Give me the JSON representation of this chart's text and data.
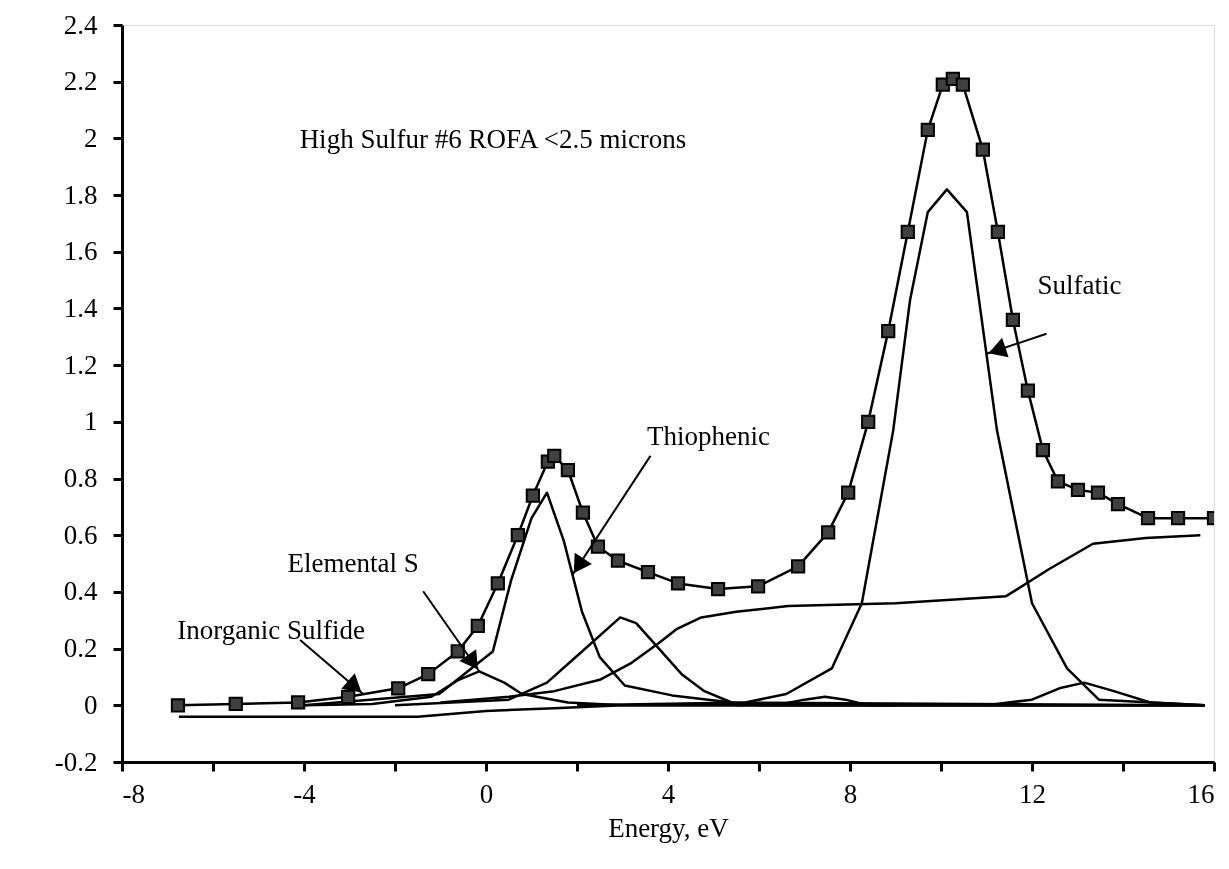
{
  "chart_data": {
    "type": "line",
    "xlabel": "Energy, eV",
    "xlim": [
      -8,
      16
    ],
    "ylim": [
      -0.2,
      2.4
    ],
    "xticks": [
      -8,
      {
        "value": -6,
        "label": null
      },
      -4,
      {
        "value": -2,
        "label": null
      },
      0,
      {
        "value": 2,
        "label": null
      },
      4,
      {
        "value": 6,
        "label": null
      },
      8,
      {
        "value": 10,
        "label": null
      },
      12,
      {
        "value": 14,
        "label": null
      },
      16
    ],
    "yticks": [
      -0.2,
      0,
      0.2,
      0.4,
      0.6,
      0.8,
      1,
      1.2,
      1.4,
      1.6,
      1.8,
      2,
      2.2,
      2.4
    ],
    "grid": false,
    "annotations": [
      "High Sulfur #6 ROFA <2.5 microns",
      {
        "text": "Inorganic Sulfide",
        "x": -2.7,
        "y": 0.04
      },
      {
        "text": "Elemental S",
        "x": -0.15,
        "y": 0.12
      },
      {
        "text": "Thiophenic",
        "x": 1.9,
        "y": 0.46
      },
      {
        "text": "Sulfatic",
        "x": 11.0,
        "y": 1.24
      }
    ],
    "series": [
      {
        "type": "scatter",
        "marker": "square",
        "color": "#404040",
        "x": [
          -6.77,
          -5.5,
          -4.13,
          -3.03,
          -1.93,
          -1.27,
          -0.62,
          -0.18,
          0.26,
          0.7,
          1.03,
          1.36,
          1.5,
          1.8,
          2.13,
          2.46,
          2.9,
          3.56,
          4.22,
          5.1,
          5.98,
          6.86,
          7.52,
          7.96,
          8.4,
          8.84,
          9.27,
          9.71,
          10.04,
          10.26,
          10.48,
          10.92,
          11.25,
          11.58,
          11.91,
          12.24,
          12.57,
          13.01,
          13.45,
          13.89,
          14.55,
          15.21,
          16.0
        ],
        "values": [
          0,
          0.005,
          0.01,
          0.03,
          0.06,
          0.11,
          0.19,
          0.28,
          0.43,
          0.6,
          0.74,
          0.86,
          0.88,
          0.83,
          0.68,
          0.56,
          0.51,
          0.47,
          0.43,
          0.41,
          0.42,
          0.49,
          0.61,
          0.75,
          1.0,
          1.32,
          1.67,
          2.03,
          2.19,
          2.21,
          2.19,
          1.96,
          1.67,
          1.36,
          1.11,
          0.9,
          0.79,
          0.76,
          0.75,
          0.71,
          0.66,
          0.66,
          0.66
        ]
      },
      {
        "color": "#000000",
        "x": [
          -6.77,
          -5.5,
          -4.13,
          -3.03,
          -1.93,
          -1.27,
          -0.62,
          -0.18,
          0.26,
          0.7,
          1.03,
          1.36,
          1.5,
          1.8,
          2.13,
          2.46,
          2.9,
          3.56,
          4.22,
          5.1,
          5.98,
          6.86,
          7.52,
          7.96,
          8.4,
          8.84,
          9.27,
          9.71,
          10.04,
          10.26,
          10.48,
          10.92,
          11.25,
          11.58,
          11.91,
          12.24,
          12.57,
          13.01,
          13.45,
          13.89,
          14.55,
          15.21,
          16.0
        ],
        "values": [
          0,
          0.005,
          0.01,
          0.03,
          0.06,
          0.11,
          0.19,
          0.28,
          0.43,
          0.6,
          0.74,
          0.86,
          0.88,
          0.83,
          0.68,
          0.56,
          0.51,
          0.47,
          0.43,
          0.41,
          0.42,
          0.49,
          0.61,
          0.75,
          1.0,
          1.32,
          1.67,
          2.03,
          2.19,
          2.21,
          2.19,
          1.96,
          1.67,
          1.36,
          1.11,
          0.9,
          0.79,
          0.76,
          0.75,
          0.71,
          0.66,
          0.66,
          0.66
        ]
      },
      {
        "color": "#000000",
        "x": [
          -4,
          -2.5,
          -1.2,
          -0.6,
          -0.15,
          0.4,
          0.79,
          1.8,
          3,
          15.8
        ],
        "values": [
          0,
          0.005,
          0.03,
          0.09,
          0.12,
          0.08,
          0.04,
          0.01,
          0,
          0
        ]
      },
      {
        "color": "#000000",
        "x": [
          -4,
          -1.03,
          0.15,
          0.55,
          1.0,
          1.34,
          1.71,
          2.11,
          2.5,
          3.05,
          4.09,
          5.4,
          15.8
        ],
        "values": [
          0,
          0.04,
          0.19,
          0.44,
          0.66,
          0.75,
          0.58,
          0.33,
          0.17,
          0.07,
          0.035,
          0.01,
          0
        ]
      },
      {
        "color": "#000000",
        "x": [
          -2,
          0.5,
          1.34,
          2.11,
          2.95,
          3.3,
          3.8,
          4.3,
          4.8,
          5.4,
          6,
          15.8
        ],
        "values": [
          0,
          0.02,
          0.08,
          0.19,
          0.31,
          0.29,
          0.2,
          0.11,
          0.05,
          0.01,
          0,
          0
        ]
      },
      {
        "color": "#000000",
        "x": [
          2,
          5.7,
          6.6,
          7.6,
          8.26,
          8.95,
          9.32,
          9.71,
          10.13,
          10.57,
          11.23,
          12.0,
          12.77,
          13.47,
          15.8
        ],
        "values": [
          0,
          0.01,
          0.04,
          0.13,
          0.36,
          0.97,
          1.43,
          1.74,
          1.82,
          1.74,
          0.97,
          0.36,
          0.13,
          0.02,
          0
        ]
      },
      {
        "color": "#000000",
        "x": [
          -1,
          0.5,
          1.5,
          2.5,
          3.2,
          3.8,
          4.2,
          4.73,
          5.5,
          6.64,
          9,
          11.43,
          12.37,
          13.34,
          14.5,
          15.7
        ],
        "values": [
          0.01,
          0.03,
          0.05,
          0.09,
          0.15,
          0.22,
          0.27,
          0.31,
          0.33,
          0.35,
          0.36,
          0.385,
          0.48,
          0.57,
          0.59,
          0.6
        ]
      },
      {
        "color": "#000000",
        "x": [
          5.5,
          6.5,
          7.0,
          7.45,
          7.9,
          8.4,
          9
        ],
        "values": [
          0,
          0.005,
          0.02,
          0.03,
          0.02,
          0,
          0
        ]
      },
      {
        "color": "#000000",
        "x": [
          11,
          12,
          12.6,
          13.15,
          13.8,
          14.6,
          15.8
        ],
        "values": [
          0,
          0.02,
          0.06,
          0.08,
          0.05,
          0.01,
          0
        ]
      },
      {
        "color": "#000000",
        "x": [
          -6.75,
          -1.5,
          0,
          1.5,
          3,
          15.8
        ],
        "values": [
          -0.04,
          -0.04,
          -0.02,
          -0.01,
          0,
          0
        ]
      }
    ]
  }
}
